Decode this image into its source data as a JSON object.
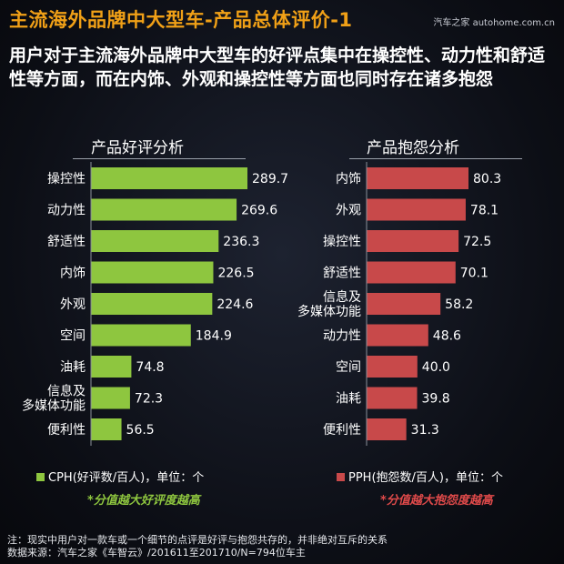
{
  "header": {
    "title": "主流海外品牌中大型车-产品总体评价-1",
    "watermark": "汽车之家 autohome.com.cn",
    "headline": "用户对于主流海外品牌中大型车的好评点集中在操控性、动力性和舒适性等方面，而在内饰、外观和操控性等方面也同时存在诸多抱怨"
  },
  "left_panel": {
    "title": "产品好评分析",
    "legend": "CPH(好评数/百人)，单位：个",
    "note": "*分值越大好评度越高"
  },
  "right_panel": {
    "title": "产品抱怨分析",
    "legend": "PPH(抱怨数/百人)，单位：个",
    "note": "*分值越大抱怨度越高"
  },
  "footer": {
    "line1": "注：现实中用户对一款车或一个细节的点评是好评与抱怨共存的，并非绝对互斥的关系",
    "line2": "数据来源：汽车之家《车智云》/201611至201710/N=794位车主"
  },
  "colors": {
    "good": "#8ec63f",
    "bad": "#c8494a",
    "title": "#f0a017"
  },
  "chart_data": [
    {
      "type": "bar",
      "orientation": "horizontal",
      "title": "产品好评分析",
      "categories": [
        "操控性",
        "动力性",
        "舒适性",
        "内饰",
        "外观",
        "空间",
        "油耗",
        "信息及多媒体功能",
        "便利性"
      ],
      "series": [
        {
          "name": "CPH(好评数/百人)",
          "values": [
            289.7,
            269.6,
            236.3,
            226.5,
            224.6,
            184.9,
            74.8,
            72.3,
            56.5
          ]
        }
      ],
      "value_labels": [
        "289.7",
        "269.6",
        "236.3",
        "226.5",
        "224.6",
        "184.9",
        "74.8",
        "72.3",
        "56.5"
      ],
      "xlim": [
        0,
        289.7
      ],
      "grid": false,
      "legend": "bottom"
    },
    {
      "type": "bar",
      "orientation": "horizontal",
      "title": "产品抱怨分析",
      "categories": [
        "内饰",
        "外观",
        "操控性",
        "舒适性",
        "信息及多媒体功能",
        "动力性",
        "空间",
        "油耗",
        "便利性"
      ],
      "series": [
        {
          "name": "PPH(抱怨数/百人)",
          "values": [
            80.3,
            78.1,
            72.5,
            70.1,
            58.2,
            48.6,
            40.0,
            39.8,
            31.3
          ]
        }
      ],
      "value_labels": [
        "80.3",
        "78.1",
        "72.5",
        "70.1",
        "58.2",
        "48.6",
        "40.0",
        "39.8",
        "31.3"
      ],
      "xlim": [
        0,
        80.3
      ],
      "grid": false,
      "legend": "bottom"
    }
  ]
}
